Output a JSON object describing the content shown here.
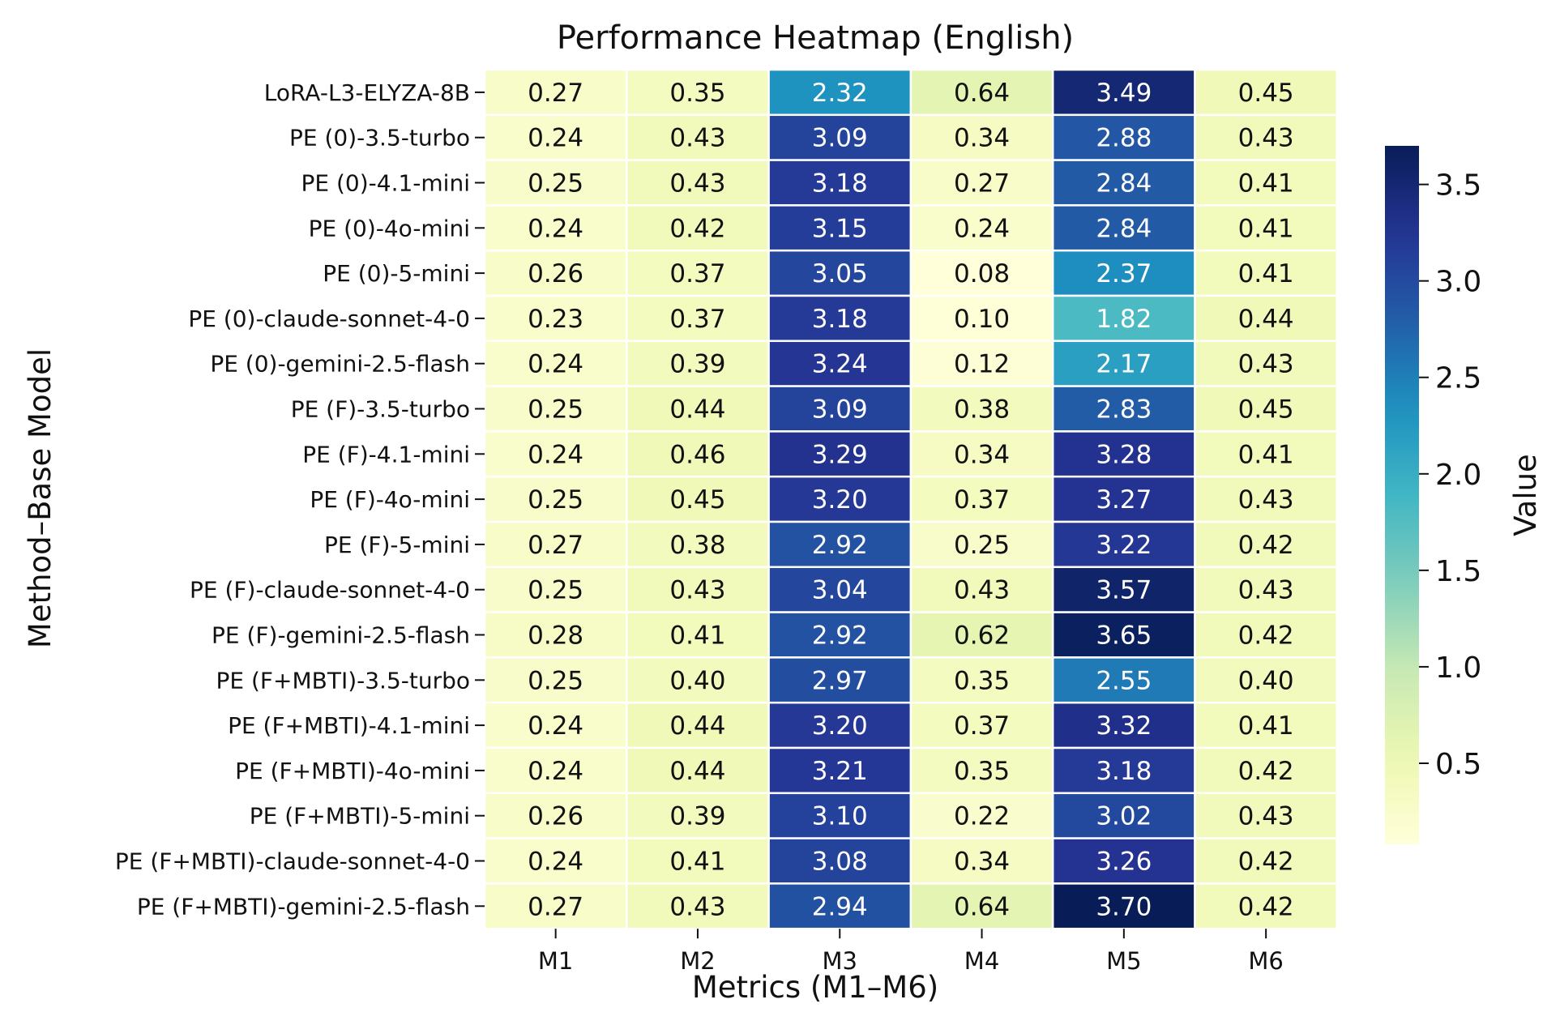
{
  "chart_data": {
    "type": "heatmap",
    "title": "Performance Heatmap (English)",
    "xlabel": "Metrics (M1–M6)",
    "ylabel": "Method–Base Model",
    "columns": [
      "M1",
      "M2",
      "M3",
      "M4",
      "M5",
      "M6"
    ],
    "rows": [
      {
        "label": "LoRA-L3-ELYZA-8B",
        "values": [
          "0.27",
          "0.35",
          "2.32",
          "0.64",
          "3.49",
          "0.45"
        ]
      },
      {
        "label": "PE (0)-3.5-turbo",
        "values": [
          "0.24",
          "0.43",
          "3.09",
          "0.34",
          "2.88",
          "0.43"
        ]
      },
      {
        "label": "PE (0)-4.1-mini",
        "values": [
          "0.25",
          "0.43",
          "3.18",
          "0.27",
          "2.84",
          "0.41"
        ]
      },
      {
        "label": "PE (0)-4o-mini",
        "values": [
          "0.24",
          "0.42",
          "3.15",
          "0.24",
          "2.84",
          "0.41"
        ]
      },
      {
        "label": "PE (0)-5-mini",
        "values": [
          "0.26",
          "0.37",
          "3.05",
          "0.08",
          "2.37",
          "0.41"
        ]
      },
      {
        "label": "PE (0)-claude-sonnet-4-0",
        "values": [
          "0.23",
          "0.37",
          "3.18",
          "0.10",
          "1.82",
          "0.44"
        ]
      },
      {
        "label": "PE (0)-gemini-2.5-flash",
        "values": [
          "0.24",
          "0.39",
          "3.24",
          "0.12",
          "2.17",
          "0.43"
        ]
      },
      {
        "label": "PE (F)-3.5-turbo",
        "values": [
          "0.25",
          "0.44",
          "3.09",
          "0.38",
          "2.83",
          "0.45"
        ]
      },
      {
        "label": "PE (F)-4.1-mini",
        "values": [
          "0.24",
          "0.46",
          "3.29",
          "0.34",
          "3.28",
          "0.41"
        ]
      },
      {
        "label": "PE (F)-4o-mini",
        "values": [
          "0.25",
          "0.45",
          "3.20",
          "0.37",
          "3.27",
          "0.43"
        ]
      },
      {
        "label": "PE (F)-5-mini",
        "values": [
          "0.27",
          "0.38",
          "2.92",
          "0.25",
          "3.22",
          "0.42"
        ]
      },
      {
        "label": "PE (F)-claude-sonnet-4-0",
        "values": [
          "0.25",
          "0.43",
          "3.04",
          "0.43",
          "3.57",
          "0.43"
        ]
      },
      {
        "label": "PE (F)-gemini-2.5-flash",
        "values": [
          "0.28",
          "0.41",
          "2.92",
          "0.62",
          "3.65",
          "0.42"
        ]
      },
      {
        "label": "PE (F+MBTI)-3.5-turbo",
        "values": [
          "0.25",
          "0.40",
          "2.97",
          "0.35",
          "2.55",
          "0.40"
        ]
      },
      {
        "label": "PE (F+MBTI)-4.1-mini",
        "values": [
          "0.24",
          "0.44",
          "3.20",
          "0.37",
          "3.32",
          "0.41"
        ]
      },
      {
        "label": "PE (F+MBTI)-4o-mini",
        "values": [
          "0.24",
          "0.44",
          "3.21",
          "0.35",
          "3.18",
          "0.42"
        ]
      },
      {
        "label": "PE (F+MBTI)-5-mini",
        "values": [
          "0.26",
          "0.39",
          "3.10",
          "0.22",
          "3.02",
          "0.43"
        ]
      },
      {
        "label": "PE (F+MBTI)-claude-sonnet-4-0",
        "values": [
          "0.24",
          "0.41",
          "3.08",
          "0.34",
          "3.26",
          "0.42"
        ]
      },
      {
        "label": "PE (F+MBTI)-gemini-2.5-flash",
        "values": [
          "0.27",
          "0.43",
          "2.94",
          "0.64",
          "3.70",
          "0.42"
        ]
      }
    ],
    "colorbar": {
      "label": "Value",
      "colormap": "YlGnBu",
      "vmin": 0.08,
      "vmax": 3.7,
      "ticks": [
        0.5,
        1.0,
        1.5,
        2.0,
        2.5,
        3.0,
        3.5
      ],
      "tick_labels": [
        "0.5",
        "1.0",
        "1.5",
        "2.0",
        "2.5",
        "3.0",
        "3.5"
      ]
    },
    "text_color_threshold": 1.5,
    "grid_line_color": "#ffffff"
  }
}
